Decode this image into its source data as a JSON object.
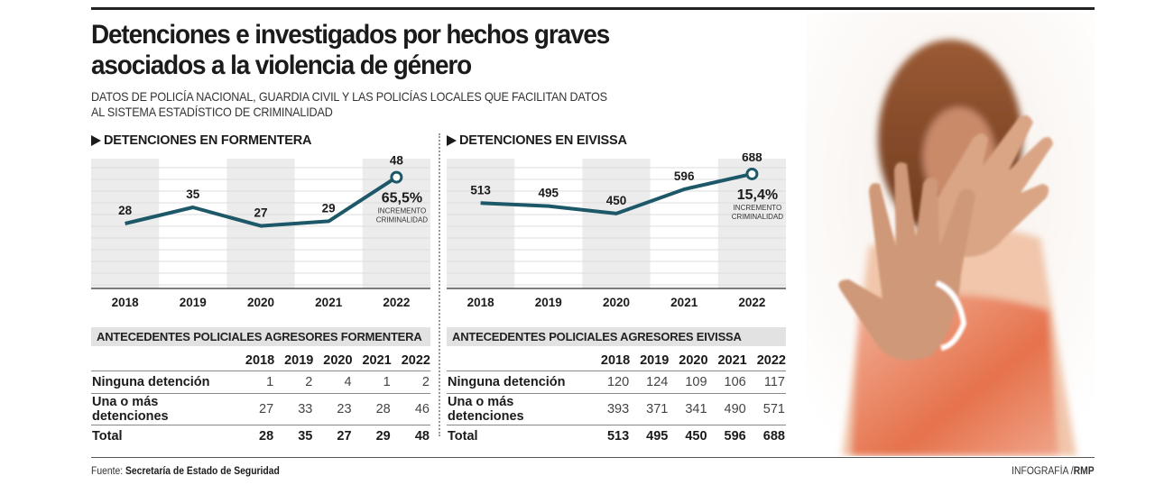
{
  "header": {
    "title": "Detenciones e investigados por hechos graves asociados a la violencia de género",
    "subtitle": "DATOS DE POLICÍA NACIONAL, GUARDIA CIVIL Y LAS POLICÍAS LOCALES QUE FACILITAN DATOS AL SISTEMA ESTADÍSTICO DE CRIMINALIDAD"
  },
  "colors": {
    "line": "#1d5868",
    "band": "#ececec",
    "text": "#1b1b1b"
  },
  "chart_data": [
    {
      "type": "line",
      "title": "DETENCIONES EN FORMENTERA",
      "categories": [
        "2018",
        "2019",
        "2020",
        "2021",
        "2022"
      ],
      "values": [
        28,
        35,
        27,
        29,
        48
      ],
      "data_labels": [
        "28",
        "35",
        "27",
        "29",
        "48"
      ],
      "xlabel": "",
      "ylabel": "",
      "ylim": [
        0,
        56
      ],
      "grid": true,
      "highlight": {
        "category": "2022",
        "percent": "65,5%",
        "label_line1": "INCREMENTO",
        "label_line2": "CRIMINALIDAD"
      }
    },
    {
      "type": "line",
      "title": "DETENCIONES EN EIVISSA",
      "categories": [
        "2018",
        "2019",
        "2020",
        "2021",
        "2022"
      ],
      "values": [
        513,
        495,
        450,
        596,
        688
      ],
      "data_labels": [
        "513",
        "495",
        "450",
        "596",
        "688"
      ],
      "xlabel": "",
      "ylabel": "",
      "ylim": [
        0,
        780
      ],
      "grid": true,
      "highlight": {
        "category": "2022",
        "percent": "15,4%",
        "label_line1": "INCREMENTO",
        "label_line2": "CRIMINALIDAD"
      }
    },
    {
      "type": "table",
      "title": "ANTECEDENTES POLICIALES AGRESORES FORMENTERA",
      "columns": [
        "2018",
        "2019",
        "2020",
        "2021",
        "2022"
      ],
      "rows": [
        {
          "label": "Ninguna detención",
          "values": [
            "1",
            "2",
            "4",
            "1",
            "2"
          ]
        },
        {
          "label": "Una o más detenciones",
          "values": [
            "27",
            "33",
            "23",
            "28",
            "46"
          ]
        },
        {
          "label": "Total",
          "values": [
            "28",
            "35",
            "27",
            "29",
            "48"
          ]
        }
      ]
    },
    {
      "type": "table",
      "title": "ANTECEDENTES POLICIALES AGRESORES EIVISSA",
      "columns": [
        "2018",
        "2019",
        "2020",
        "2021",
        "2022"
      ],
      "rows": [
        {
          "label": "Ninguna detención",
          "values": [
            "120",
            "124",
            "109",
            "106",
            "117"
          ]
        },
        {
          "label": "Una o más detenciones",
          "values": [
            "393",
            "371",
            "341",
            "490",
            "571"
          ]
        },
        {
          "label": "Total",
          "values": [
            "513",
            "495",
            "450",
            "596",
            "688"
          ]
        }
      ]
    }
  ],
  "footer": {
    "source_label": "Fuente:",
    "source_value": "Secretaría de Estado de Seguridad",
    "credit_label": "INFOGRAFÍA /",
    "credit_value": "RMP"
  },
  "photo": {
    "description": "woman-raising-hands-stop-gesture"
  }
}
